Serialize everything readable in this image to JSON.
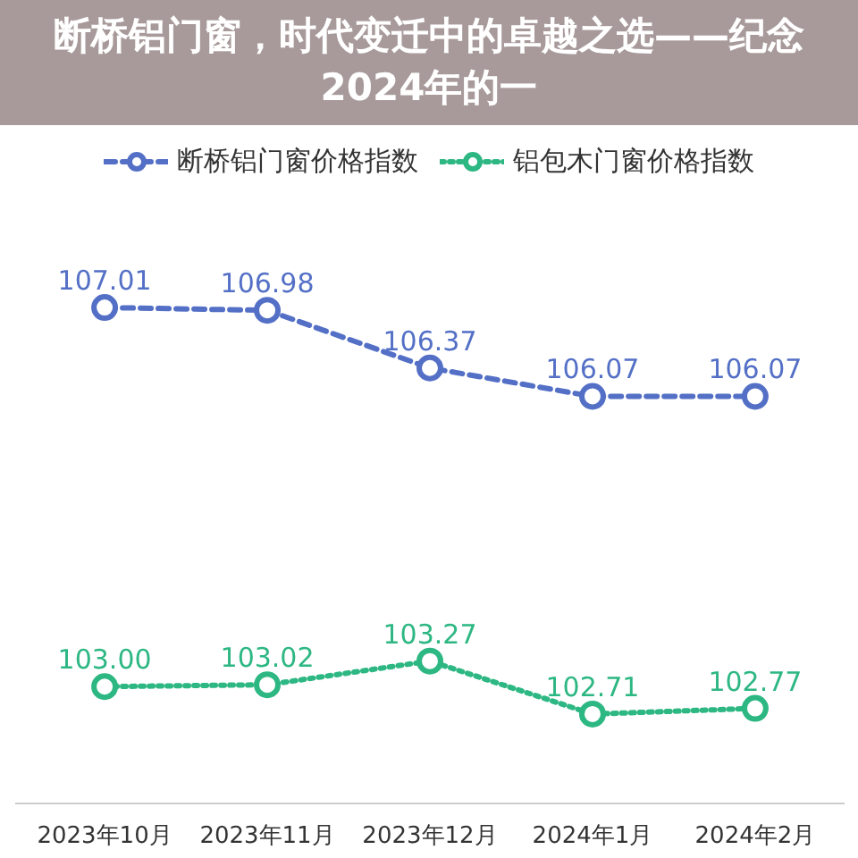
{
  "chart_data": {
    "type": "line",
    "title": "断桥铝门窗，时代变迁中的卓越之选——纪念2024年的一",
    "categories": [
      "2023年10月",
      "2023年11月",
      "2023年12月",
      "2024年1月",
      "2024年2月"
    ],
    "series": [
      {
        "name": "断桥铝门窗价格指数",
        "color": "#5470c6",
        "line_style": "dashed",
        "values": [
          107.01,
          106.98,
          106.37,
          106.07,
          106.07
        ],
        "value_labels": [
          "107.01",
          "106.98",
          "106.37",
          "106.07",
          "106.07"
        ]
      },
      {
        "name": "铝包木门窗价格指数",
        "color": "#2db783",
        "line_style": "dotted",
        "values": [
          103.0,
          103.02,
          103.27,
          102.71,
          102.77
        ],
        "value_labels": [
          "103.00",
          "103.02",
          "103.27",
          "102.71",
          "102.77"
        ]
      }
    ],
    "marker": "circle",
    "legend": "top",
    "grid": false,
    "tick_labels": "x"
  }
}
